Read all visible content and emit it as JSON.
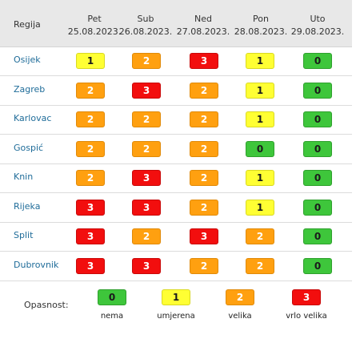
{
  "table": {
    "region_header": "Regija",
    "days": [
      {
        "day": "Pet",
        "date": "25.08.2023."
      },
      {
        "day": "Sub",
        "date": "26.08.2023."
      },
      {
        "day": "Ned",
        "date": "27.08.2023."
      },
      {
        "day": "Pon",
        "date": "28.08.2023."
      },
      {
        "day": "Uto",
        "date": "29.08.2023."
      }
    ],
    "rows": [
      {
        "region": "Osijek",
        "levels": [
          "1",
          "2",
          "3",
          "1",
          "0"
        ]
      },
      {
        "region": "Zagreb",
        "levels": [
          "2",
          "3",
          "2",
          "1",
          "0"
        ]
      },
      {
        "region": "Karlovac",
        "levels": [
          "2",
          "2",
          "2",
          "1",
          "0"
        ]
      },
      {
        "region": "Gospić",
        "levels": [
          "2",
          "2",
          "2",
          "0",
          "0"
        ]
      },
      {
        "region": "Knin",
        "levels": [
          "2",
          "3",
          "2",
          "1",
          "0"
        ]
      },
      {
        "region": "Rijeka",
        "levels": [
          "3",
          "3",
          "2",
          "1",
          "0"
        ]
      },
      {
        "region": "Split",
        "levels": [
          "3",
          "2",
          "3",
          "2",
          "0"
        ]
      },
      {
        "region": "Dubrovnik",
        "levels": [
          "3",
          "3",
          "2",
          "2",
          "0"
        ]
      }
    ]
  },
  "legend": {
    "label": "Opasnost:",
    "items": [
      {
        "value": "0",
        "text": "nema"
      },
      {
        "value": "1",
        "text": "umjerena"
      },
      {
        "value": "2",
        "text": "velika"
      },
      {
        "value": "3",
        "text": "vrlo velika"
      }
    ]
  },
  "colors": {
    "level_0": "#3ec63b",
    "level_1": "#ffff33",
    "level_2": "#ffa010",
    "level_3": "#f20e0e",
    "header_bg": "#e8e8e8",
    "region_link": "#1f6c99"
  }
}
